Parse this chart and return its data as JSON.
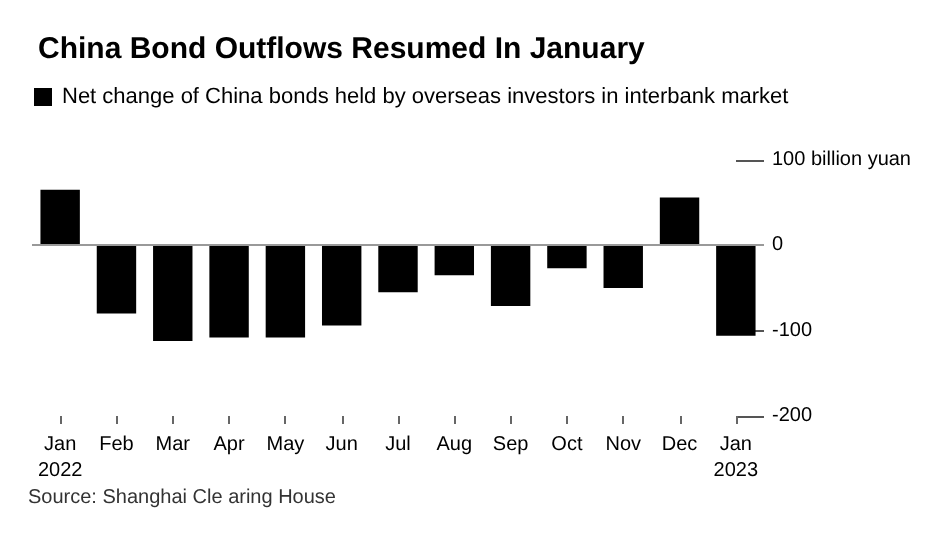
{
  "chart_data": {
    "type": "bar",
    "title": "China Bond Outflows Resumed In January",
    "categories": [
      "Jan\n2022",
      "Feb",
      "Mar",
      "Apr",
      "May",
      "Jun",
      "Jul",
      "Aug",
      "Sep",
      "Oct",
      "Nov",
      "Dec",
      "Jan\n2023"
    ],
    "series": [
      {
        "name": "Net change of China bonds held by overseas investors in interbank market",
        "color": "#000000",
        "values": [
          65,
          -80,
          -112,
          -108,
          -108,
          -94,
          -55,
          -35,
          -71,
          -27,
          -50,
          56,
          -106
        ]
      }
    ],
    "ylim": [
      -200,
      100
    ],
    "yticks": [
      {
        "value": 100,
        "label": "100 billion yuan"
      },
      0,
      -100,
      -200
    ],
    "ref_lines": [
      {
        "axis": "y",
        "value": 0,
        "color": "#999999"
      }
    ],
    "legend": "top left",
    "grid": false,
    "annotations": [
      "Source: Shanghai Cle aring House"
    ]
  }
}
